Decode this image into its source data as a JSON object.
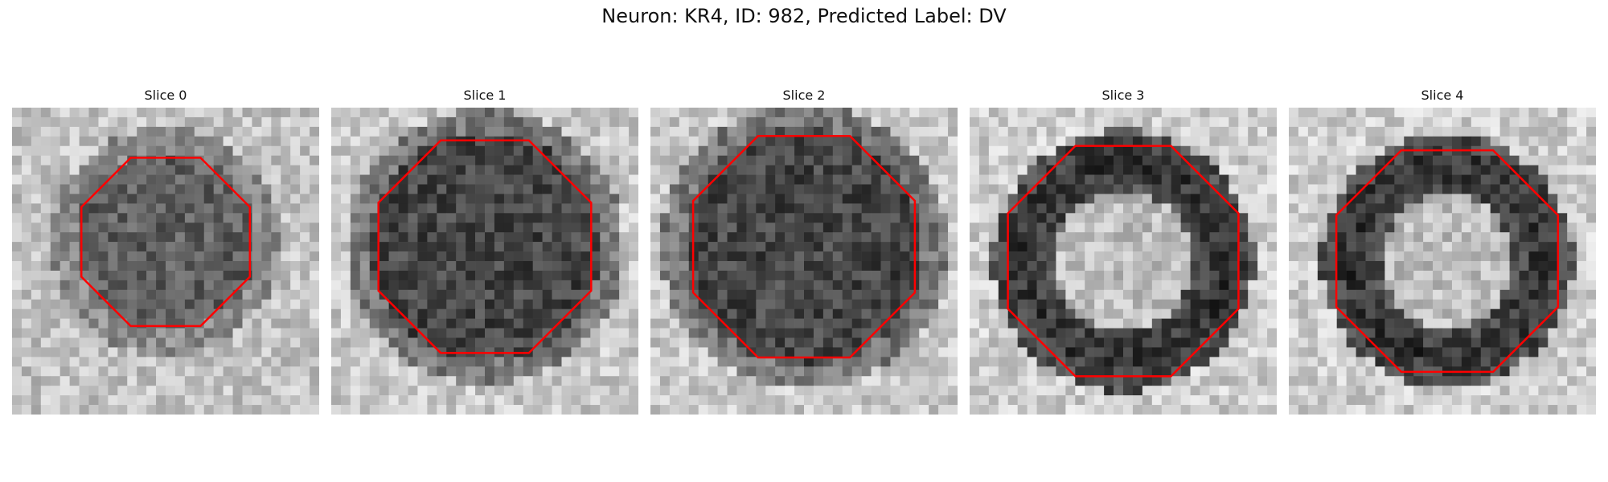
{
  "title": "Neuron: KR4, ID: 982, Predicted Label: DV",
  "slices": [
    {
      "label": "Slice 0",
      "style": "blob"
    },
    {
      "label": "Slice 1",
      "style": "dark"
    },
    {
      "label": "Slice 2",
      "style": "dark"
    },
    {
      "label": "Slice 3",
      "style": "ring"
    },
    {
      "label": "Slice 4",
      "style": "ring"
    }
  ],
  "colors": {
    "contour": "#ff0000",
    "background": "#ffffff"
  }
}
